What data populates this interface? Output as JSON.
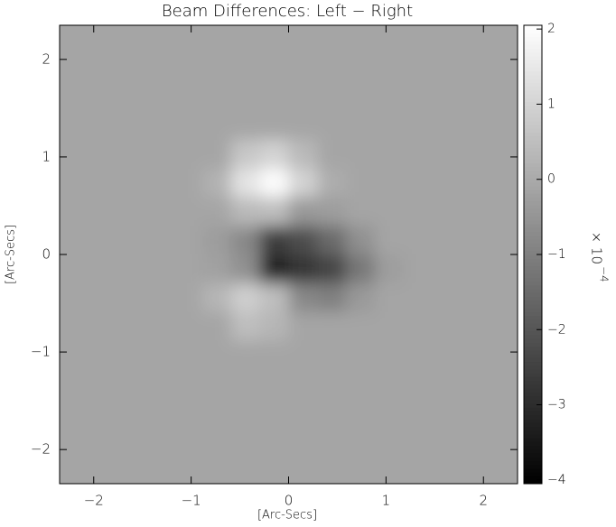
{
  "chart_data": {
    "type": "heatmap",
    "title": "Beam Differences: Left − Right",
    "xlabel": "[Arc-Secs]",
    "ylabel": "[Arc-Secs]",
    "colorbar_label": "× 10",
    "colorbar_exponent": "−4",
    "colormap": "gray",
    "xlim": [
      -2.35,
      2.35
    ],
    "ylim": [
      -2.35,
      2.35
    ],
    "zlim": [
      -4.05,
      2.05
    ],
    "xticks": [
      {
        "value": -2,
        "label": "−2"
      },
      {
        "value": -1,
        "label": "−1"
      },
      0,
      1,
      2
    ],
    "yticks": [
      {
        "value": -2,
        "label": "−2"
      },
      {
        "value": -1,
        "label": "−1"
      },
      0,
      1,
      2
    ],
    "zticks": [
      2,
      1,
      0,
      {
        "value": -1,
        "label": "−1"
      },
      {
        "value": -2,
        "label": "−2"
      },
      {
        "value": -3,
        "label": "−3"
      },
      {
        "value": -4,
        "label": "−4"
      }
    ],
    "z": [
      [
        -0.1,
        -0.1,
        -0.1,
        -0.1,
        -0.1,
        -0.1,
        -0.1,
        -0.1,
        -0.1,
        -0.1,
        -0.1,
        -0.1,
        -0.1,
        -0.1,
        -0.1,
        -0.1
      ],
      [
        -0.1,
        -0.1,
        -0.1,
        -0.1,
        -0.1,
        -0.1,
        -0.1,
        -0.1,
        -0.1,
        -0.1,
        -0.1,
        -0.1,
        -0.1,
        -0.1,
        -0.1,
        -0.1
      ],
      [
        -0.1,
        -0.1,
        -0.1,
        -0.1,
        -0.1,
        -0.1,
        -0.1,
        -0.1,
        -0.1,
        -0.1,
        -0.1,
        -0.1,
        -0.1,
        -0.1,
        -0.1,
        -0.1
      ],
      [
        -0.1,
        -0.1,
        -0.1,
        -0.1,
        -0.1,
        -0.1,
        -0.1,
        -0.1,
        -0.1,
        -0.1,
        -0.1,
        -0.1,
        -0.1,
        -0.1,
        -0.1,
        -0.1
      ],
      [
        -0.1,
        -0.1,
        -0.1,
        -0.1,
        -0.1,
        -0.1,
        0.7,
        1.0,
        0.4,
        -0.1,
        -0.1,
        -0.1,
        -0.1,
        -0.1,
        -0.1,
        -0.1
      ],
      [
        -0.1,
        -0.1,
        -0.1,
        -0.1,
        -0.1,
        0.2,
        1.4,
        2.0,
        1.0,
        0.1,
        -0.1,
        -0.1,
        -0.1,
        -0.1,
        -0.1,
        -0.1
      ],
      [
        -0.1,
        -0.1,
        -0.1,
        -0.1,
        -0.1,
        -0.1,
        0.4,
        0.5,
        -0.4,
        -0.3,
        -0.1,
        -0.1,
        -0.1,
        -0.1,
        -0.1,
        -0.1
      ],
      [
        -0.1,
        -0.1,
        -0.1,
        -0.1,
        -0.1,
        -0.3,
        -0.8,
        -2.6,
        -2.2,
        -1.5,
        -0.6,
        -0.1,
        -0.1,
        -0.1,
        -0.1,
        -0.1
      ],
      [
        -0.1,
        -0.1,
        -0.1,
        -0.1,
        -0.1,
        -0.2,
        -0.6,
        -3.2,
        -2.8,
        -2.4,
        -1.2,
        -0.3,
        -0.1,
        -0.1,
        -0.1,
        -0.1
      ],
      [
        -0.1,
        -0.1,
        -0.1,
        -0.1,
        -0.1,
        0.3,
        0.9,
        0.5,
        -0.8,
        -1.0,
        -0.4,
        -0.1,
        -0.1,
        -0.1,
        -0.1,
        -0.1
      ],
      [
        -0.1,
        -0.1,
        -0.1,
        -0.1,
        -0.1,
        -0.1,
        0.5,
        0.3,
        -0.1,
        -0.1,
        -0.1,
        -0.1,
        -0.1,
        -0.1,
        -0.1,
        -0.1
      ],
      [
        -0.1,
        -0.1,
        -0.1,
        -0.1,
        -0.1,
        -0.1,
        -0.1,
        -0.1,
        -0.1,
        -0.1,
        -0.1,
        -0.1,
        -0.1,
        -0.1,
        -0.1,
        -0.1
      ],
      [
        -0.1,
        -0.1,
        -0.1,
        -0.1,
        -0.1,
        -0.1,
        -0.1,
        -0.1,
        -0.1,
        -0.1,
        -0.1,
        -0.1,
        -0.1,
        -0.1,
        -0.1,
        -0.1
      ],
      [
        -0.1,
        -0.1,
        -0.1,
        -0.1,
        -0.1,
        -0.1,
        -0.1,
        -0.1,
        -0.1,
        -0.1,
        -0.1,
        -0.1,
        -0.1,
        -0.1,
        -0.1,
        -0.1
      ],
      [
        -0.1,
        -0.1,
        -0.1,
        -0.1,
        -0.1,
        -0.1,
        -0.1,
        -0.1,
        -0.1,
        -0.1,
        -0.1,
        -0.1,
        -0.1,
        -0.1,
        -0.1,
        -0.1
      ],
      [
        -0.1,
        -0.1,
        -0.1,
        -0.1,
        -0.1,
        -0.1,
        -0.1,
        -0.1,
        -0.1,
        -0.1,
        -0.1,
        -0.1,
        -0.1,
        -0.1,
        -0.1,
        -0.1
      ]
    ]
  }
}
